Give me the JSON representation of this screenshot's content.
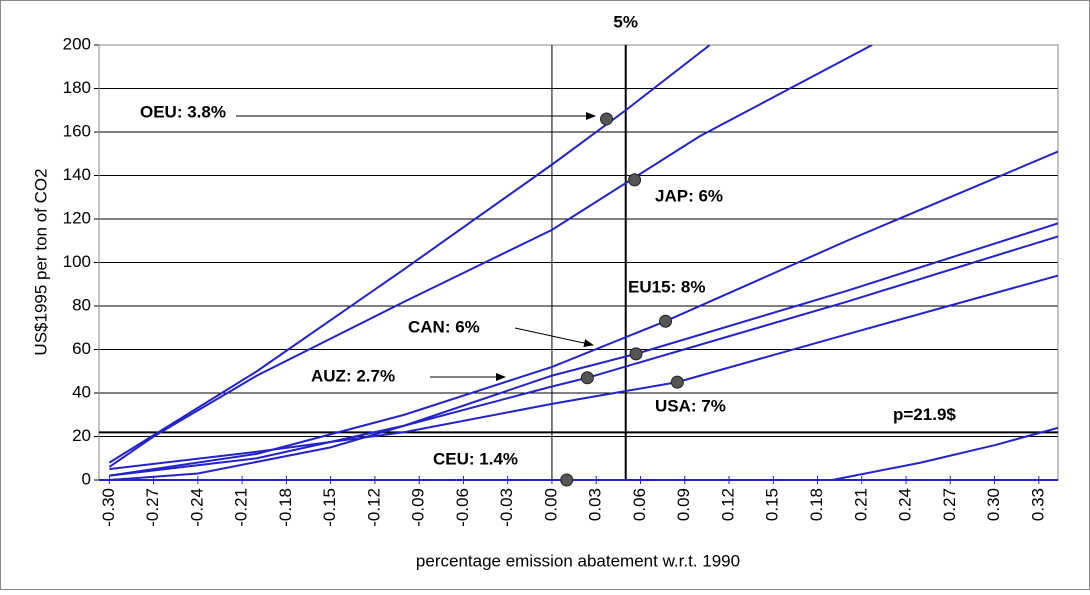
{
  "chart_data": {
    "type": "line",
    "xlabel": "percentage emission abatement w.r.t. 1990",
    "ylabel": "US$1995 per ton of CO2",
    "xlim": [
      -0.307,
      0.343
    ],
    "ylim": [
      0,
      200
    ],
    "xticks": [
      {
        "value": -0.3,
        "label": "-0.30"
      },
      -0.27,
      -0.24,
      -0.21,
      -0.18,
      -0.15,
      -0.12,
      -0.09,
      -0.06,
      -0.03,
      {
        "value": 0,
        "label": "0.00"
      },
      0.03,
      0.06,
      0.09,
      0.12,
      0.15,
      0.18,
      0.21,
      0.24,
      0.27,
      {
        "value": 0.3,
        "label": "0.30"
      },
      0.33
    ],
    "yticks": [
      0,
      20,
      40,
      60,
      80,
      100,
      120,
      140,
      160,
      180,
      200
    ],
    "grid": true,
    "color": "#2323c8",
    "series": [
      {
        "name": "OEU",
        "x": [
          -0.3,
          -0.2,
          -0.1,
          0,
          0.05,
          0.107
        ],
        "values": [
          8,
          50,
          97,
          145,
          170,
          200
        ]
      },
      {
        "name": "JAP",
        "x": [
          -0.3,
          -0.27,
          -0.2,
          -0.1,
          0,
          0.1,
          0.217
        ],
        "values": [
          6,
          20,
          48,
          82,
          115,
          158,
          200
        ]
      },
      {
        "name": "EU15",
        "x": [
          -0.3,
          -0.2,
          -0.1,
          0,
          0.077,
          0.2,
          0.343
        ],
        "values": [
          2,
          12,
          30,
          52,
          73,
          110,
          151
        ]
      },
      {
        "name": "CAN",
        "x": [
          -0.3,
          -0.24,
          -0.15,
          -0.1,
          0,
          0.057,
          0.2,
          0.343
        ],
        "values": [
          0,
          3,
          15,
          25,
          48,
          58,
          87,
          118
        ]
      },
      {
        "name": "AUZ",
        "x": [
          -0.3,
          -0.2,
          -0.1,
          0,
          0.024,
          0.2,
          0.343
        ],
        "values": [
          2,
          10,
          25,
          43,
          47,
          82,
          112
        ]
      },
      {
        "name": "USA",
        "x": [
          -0.3,
          -0.2,
          -0.1,
          0,
          0.085,
          0.2,
          0.343
        ],
        "values": [
          5,
          13,
          22,
          35,
          45,
          67,
          94
        ]
      },
      {
        "name": "CEU",
        "x": [
          -0.307,
          0.19,
          0.25,
          0.3,
          0.343
        ],
        "values": [
          0,
          0,
          8,
          16,
          24
        ]
      }
    ],
    "points": {
      "x": [
        0.037,
        0.056,
        0.077,
        0.057,
        0.024,
        0.085,
        0.01
      ],
      "values": [
        166,
        138,
        73,
        58,
        47,
        45,
        0
      ]
    },
    "annotations": [
      "OEU: 3.8%",
      "JAP: 6%",
      "EU15: 8%",
      "CAN: 6%",
      "AUZ: 2.7%",
      "USA: 7%",
      "CEU: 1.4%"
    ],
    "vlines": [
      {
        "value": 0.05,
        "label": "5%"
      },
      {
        "value": 0
      }
    ],
    "hline": {
      "value": 21.9,
      "label": "p=21.9$"
    }
  }
}
